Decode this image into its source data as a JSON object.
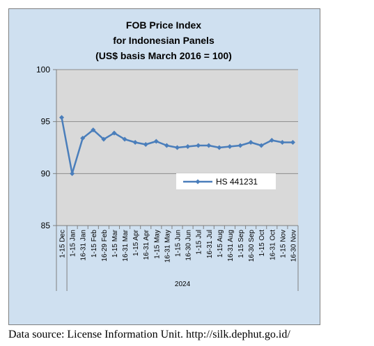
{
  "chart_data": {
    "type": "line",
    "title_lines": [
      "FOB Price Index",
      "for Indonesian Panels",
      "(US$ basis March 2016 = 100)"
    ],
    "categories": [
      "1-15 Dec",
      "1-15 Jan",
      "16-31 Jan",
      "1-15 Feb",
      "16-29 Feb",
      "1-15 Mar",
      "16-31 Mar",
      "1-15 Apr",
      "16-31 Apr",
      "1-15 May",
      "16-31 May",
      "1-15 Jun",
      "16-30 Jun",
      "1-15 Jul",
      "16-31 Jul",
      "1-15 Aug",
      "16-31 Aug",
      "1-15 Sep",
      "16-30 Sep",
      "1-15 Oct",
      "16-31 Oct",
      "1-15 Nov",
      "16-30 Nov"
    ],
    "year_group": {
      "label": "2024",
      "start_index": 1,
      "end_index": 22
    },
    "series": [
      {
        "name": "HS 441231",
        "color": "#4a7ebb",
        "values": [
          95.4,
          90.0,
          93.4,
          94.2,
          93.3,
          93.9,
          93.3,
          93.0,
          92.8,
          93.1,
          92.7,
          92.5,
          92.6,
          92.7,
          92.7,
          92.5,
          92.6,
          92.7,
          93.0,
          92.7,
          93.2,
          93.0,
          93.0
        ]
      }
    ],
    "ylim": [
      85,
      100
    ],
    "yticks": [
      "85",
      "90",
      "95",
      "100"
    ],
    "grid": true,
    "legend_position": "inside-right"
  },
  "source_text": "Data source: License Information Unit. http://silk.dephut.go.id/"
}
